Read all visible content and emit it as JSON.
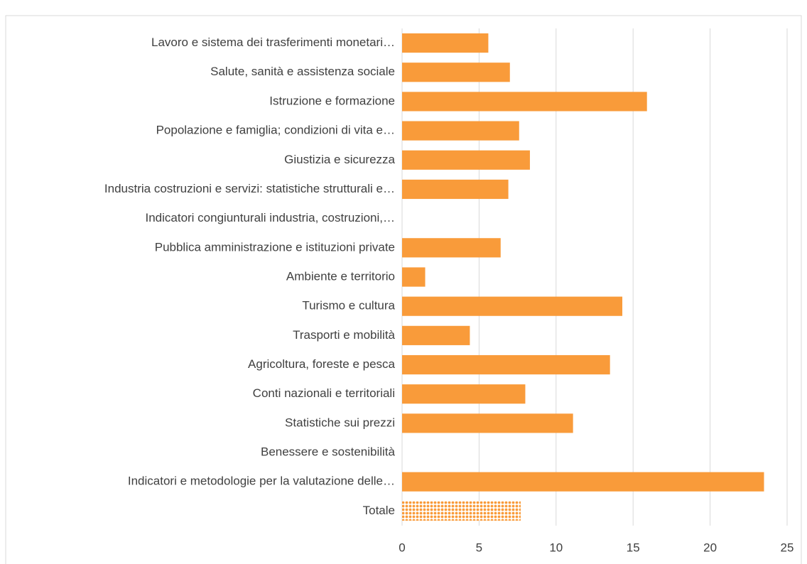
{
  "chart_data": {
    "type": "bar",
    "orientation": "horizontal",
    "categories": [
      "Lavoro e sistema dei trasferimenti monetari…",
      "Salute, sanità e assistenza sociale",
      "Istruzione e formazione",
      "Popolazione e famiglia; condizioni di vita e…",
      "Giustizia e sicurezza",
      "Industria costruzioni e servizi: statistiche strutturali e…",
      "Indicatori congiunturali industria, costruzioni,…",
      "Pubblica amministrazione e istituzioni private",
      "Ambiente e territorio",
      "Turismo e cultura",
      "Trasporti e mobilità",
      "Agricoltura, foreste e pesca",
      "Conti nazionali e territoriali",
      "Statistiche sui prezzi",
      "Benessere e sostenibilità",
      "Indicatori e metodologie per la valutazione delle…",
      "Totale"
    ],
    "values": [
      5.6,
      7.0,
      15.9,
      7.6,
      8.3,
      6.9,
      0,
      6.4,
      1.5,
      14.3,
      4.4,
      13.5,
      8.0,
      11.1,
      0,
      23.5,
      7.7
    ],
    "patterns": [
      null,
      null,
      null,
      null,
      null,
      null,
      null,
      null,
      null,
      null,
      null,
      null,
      null,
      null,
      null,
      null,
      "dots"
    ],
    "color": "#f99b3a",
    "xlim": [
      0,
      25
    ],
    "xticks": [
      0,
      5,
      10,
      15,
      20,
      25
    ],
    "grid": true
  }
}
